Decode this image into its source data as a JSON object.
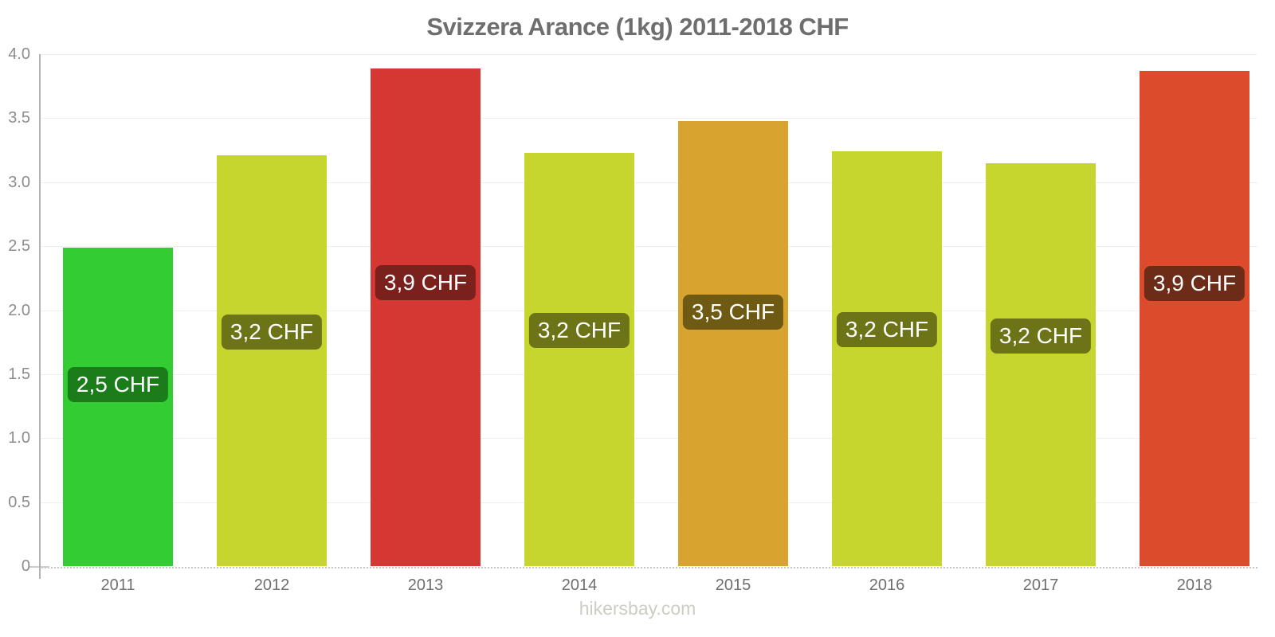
{
  "title": "Svizzera Arance (1kg) 2011-2018 CHF",
  "watermark": "hikersbay.com",
  "chart_data": {
    "type": "bar",
    "title": "Svizzera Arance (1kg) 2011-2018 CHF",
    "xlabel": "",
    "ylabel": "CHF",
    "ylim": [
      0,
      4.0
    ],
    "yticks": [
      "4.0",
      "3.5",
      "3.0",
      "2.5",
      "2.0",
      "1.5",
      "1.0",
      "0.5",
      "0"
    ],
    "grid": "horizontal",
    "legend": "none",
    "categories": [
      "2011",
      "2012",
      "2013",
      "2014",
      "2015",
      "2016",
      "2017",
      "2018"
    ],
    "values": [
      2.49,
      3.21,
      3.89,
      3.23,
      3.48,
      3.24,
      3.15,
      3.87
    ],
    "bar_labels": [
      "2,5 CHF",
      "3,2 CHF",
      "3,9 CHF",
      "3,2 CHF",
      "3,5 CHF",
      "3,2 CHF",
      "3,2 CHF",
      "3,9 CHF"
    ],
    "bar_colors": [
      "#33cc33",
      "#c7d62e",
      "#d53732",
      "#c7d62e",
      "#d9a32f",
      "#c7d62e",
      "#c7d62e",
      "#dc4c2c"
    ],
    "label_bg_colors": [
      "#1a7d1a",
      "#6d7418",
      "#7b211d",
      "#6d7418",
      "#6f5a13",
      "#6d7418",
      "#6d7418",
      "#6c2c17"
    ],
    "label_text_color": "#ffffff",
    "title_color": "#6e6e6e",
    "tick_label_color": "#8c8c8c",
    "x_label_color": "#6f6f6f",
    "axis_color": "#b3b3b3",
    "gridline_color": "#efefef",
    "baseline_color": "#c6c6c6",
    "watermark_color": "#cdcdc6"
  }
}
